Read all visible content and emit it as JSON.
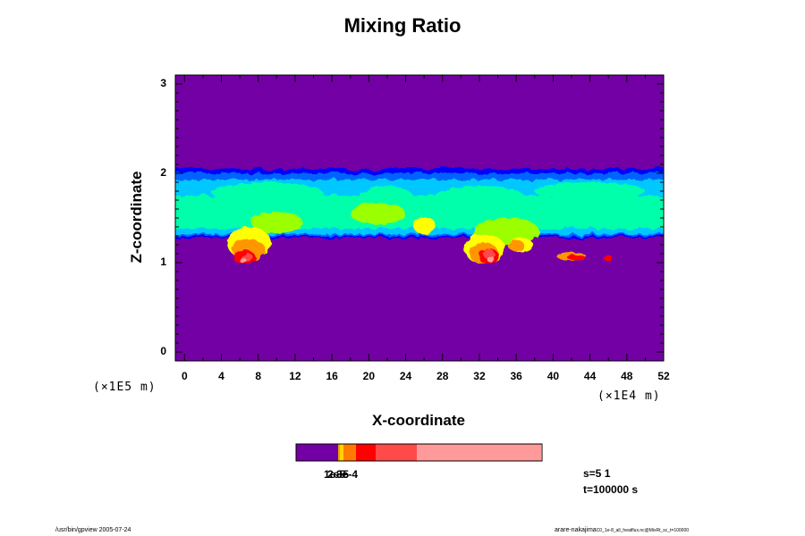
{
  "title": "Mixing Ratio",
  "chart_data": {
    "type": "heatmap",
    "title": "Mixing Ratio",
    "xlabel": "X-coordinate",
    "ylabel": "Z-coordinate",
    "x_scale_label": "(×1E4 m)",
    "y_scale_label": "(×1E5 m)",
    "xlim": [
      -1,
      52
    ],
    "ylim": [
      -0.1,
      3.1
    ],
    "x_ticks": [
      "0",
      "4",
      "8",
      "12",
      "16",
      "20",
      "24",
      "28",
      "32",
      "36",
      "40",
      "44",
      "48",
      "52"
    ],
    "x_tick_values": [
      0,
      4,
      8,
      12,
      16,
      20,
      24,
      28,
      32,
      36,
      40,
      44,
      48,
      52
    ],
    "y_ticks": [
      "0",
      "1",
      "2",
      "3"
    ],
    "y_tick_values": [
      0,
      1,
      2,
      3
    ],
    "field_layer": {
      "bottom": 1.28,
      "top": 2.05
    },
    "colormap": [
      "#7300a4",
      "#0000ff",
      "#0064ff",
      "#00c8ff",
      "#00ffaa",
      "#9bff00",
      "#ffff00",
      "#ff9600",
      "#ff0000",
      "#ff4a4a",
      "#ff9a9a"
    ],
    "colorbar": {
      "colors": [
        "#7300a4",
        "#f2a000",
        "#ffd400",
        "#ff7a00",
        "#ff0000",
        "#ff4a4a",
        "#ff9a9a"
      ],
      "labels": [
        "1e-5",
        "2e-5",
        "3e-4"
      ]
    }
  },
  "info": {
    "line1": "s=5 1",
    "line2": "t=100000 s"
  },
  "footer": {
    "left": "/usr/bin/gpview 2005-07-24",
    "right_main": "arare-nakajima",
    "right_small": "C0_1e-8_all_heatflux.nc@MixRt_sc_t=100000"
  },
  "background_color": "#7300a4"
}
